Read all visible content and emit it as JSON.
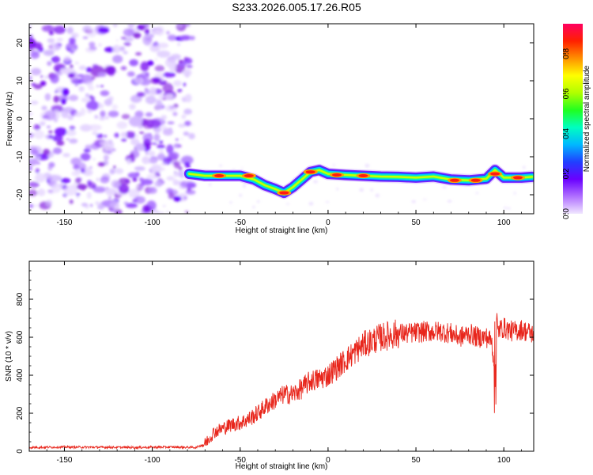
{
  "title": "S233.2026.005.17.26.R05",
  "chart_data": [
    {
      "type": "heatmap",
      "name": "spectrogram",
      "xlabel": "Height of straight line (km)",
      "ylabel": "Frequency (Hz)",
      "xlim": [
        -170,
        117
      ],
      "ylim": [
        -25,
        25
      ],
      "xticks": [
        -150,
        -100,
        -50,
        0,
        50,
        100
      ],
      "xtick_labels": [
        "-150",
        "-100",
        "-50",
        "0",
        "50",
        "100"
      ],
      "yticks": [
        -20,
        -10,
        0,
        10,
        20
      ],
      "ytick_labels": [
        "-20",
        "-10",
        "0",
        "10",
        "20"
      ],
      "noise_region_x": [
        -170,
        -80
      ],
      "signal_region_x": [
        -79,
        116
      ],
      "signal_ridge": {
        "height_km": [
          -79,
          -70,
          -60,
          -50,
          -42,
          -36,
          -30,
          -25,
          -20,
          -15,
          -10,
          -5,
          0,
          10,
          20,
          30,
          40,
          50,
          60,
          70,
          80,
          90,
          95,
          100,
          110,
          116
        ],
        "frequency_hz": [
          -14.5,
          -15,
          -15,
          -15,
          -16,
          -17.5,
          -18.5,
          -19.5,
          -18,
          -16,
          -14,
          -13.5,
          -14.5,
          -14.8,
          -15,
          -15.2,
          -15.3,
          -15.5,
          -15.2,
          -16,
          -16.2,
          -15.8,
          -13.5,
          -15.5,
          -15.5,
          -15.3
        ]
      },
      "peak_markers": [
        {
          "height_km": -62,
          "frequency_hz": -15
        },
        {
          "height_km": -45,
          "frequency_hz": -15
        },
        {
          "height_km": -25,
          "frequency_hz": -19.5
        },
        {
          "height_km": -10,
          "frequency_hz": -14
        },
        {
          "height_km": 5,
          "frequency_hz": -14.8
        },
        {
          "height_km": 20,
          "frequency_hz": -15
        },
        {
          "height_km": 72,
          "frequency_hz": -16.2
        },
        {
          "height_km": 84,
          "frequency_hz": -16.2
        },
        {
          "height_km": 95,
          "frequency_hz": -14.5
        },
        {
          "height_km": 108,
          "frequency_hz": -15.5
        }
      ],
      "colorbar": {
        "label": "Normalized spectral amplitude",
        "range": [
          0,
          0.95
        ],
        "ticks": [
          0.0,
          0.2,
          0.4,
          0.6,
          0.8
        ],
        "tick_labels": [
          "0.0",
          "0.2",
          "0.4",
          "0.6",
          "0.8"
        ],
        "colormap": [
          "#ffffff",
          "#d9c2ff",
          "#8a2be2",
          "#3b00ff",
          "#00c8ff",
          "#00ffa0",
          "#32ff00",
          "#c8ff00",
          "#ffff00",
          "#ff8000",
          "#ff0000",
          "#ff0080"
        ]
      }
    },
    {
      "type": "line",
      "name": "snr",
      "xlabel": "Height of straight line (km)",
      "ylabel": "SNR (10 * v/v)",
      "xlim": [
        -170,
        117
      ],
      "ylim": [
        0,
        1000
      ],
      "xticks": [
        -150,
        -100,
        -50,
        0,
        50,
        100
      ],
      "xtick_labels": [
        "-150",
        "-100",
        "-50",
        "0",
        "50",
        "100"
      ],
      "yticks": [
        0,
        200,
        400,
        600,
        800
      ],
      "ytick_labels": [
        "0",
        "200",
        "400",
        "600",
        "800"
      ],
      "series": [
        {
          "name": "SNR",
          "color": "#e8261c",
          "x": [
            -170,
            -150,
            -130,
            -110,
            -90,
            -75,
            -70,
            -65,
            -60,
            -55,
            -50,
            -45,
            -40,
            -35,
            -30,
            -25,
            -20,
            -15,
            -10,
            -5,
            0,
            5,
            10,
            15,
            20,
            25,
            30,
            35,
            40,
            45,
            50,
            55,
            60,
            65,
            70,
            75,
            80,
            85,
            90,
            93,
            95,
            96,
            97,
            100,
            105,
            110,
            116
          ],
          "y": [
            20,
            22,
            21,
            20,
            22,
            20,
            40,
            100,
            120,
            140,
            150,
            170,
            200,
            240,
            270,
            300,
            300,
            330,
            370,
            380,
            400,
            440,
            480,
            520,
            560,
            580,
            600,
            610,
            620,
            620,
            625,
            630,
            630,
            630,
            620,
            600,
            620,
            600,
            600,
            580,
            430,
            600,
            640,
            650,
            630,
            640,
            620
          ]
        }
      ],
      "noise_amplitude": 35
    }
  ]
}
